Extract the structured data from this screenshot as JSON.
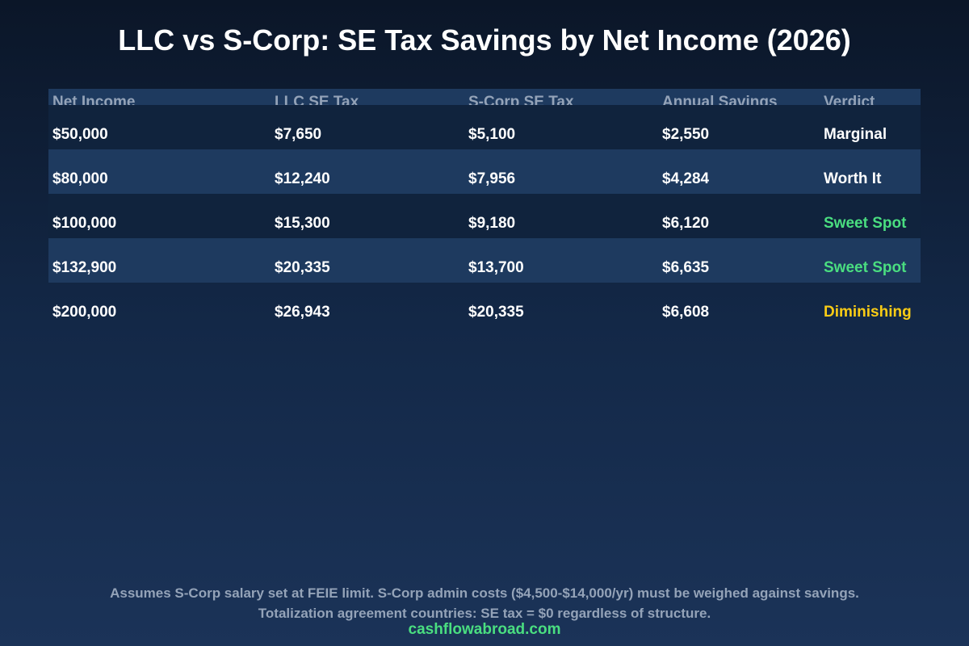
{
  "header": {
    "title": "LLC vs S-Corp: SE Tax Savings by Net Income (2026)"
  },
  "table": {
    "columns": [
      "Net Income",
      "LLC SE Tax",
      "S-Corp SE Tax",
      "Annual Savings",
      "Verdict"
    ],
    "rows": [
      [
        "$50,000",
        "$7,650",
        "$5,100",
        "$2,550",
        "Marginal"
      ],
      [
        "$80,000",
        "$12,240",
        "$7,956",
        "$4,284",
        "Worth It"
      ],
      [
        "$100,000",
        "$15,300",
        "$9,180",
        "$6,120",
        "Sweet Spot"
      ],
      [
        "$132,900",
        "$20,335",
        "$13,700",
        "$6,635",
        "Sweet Spot"
      ],
      [
        "$200,000",
        "$26,943",
        "$20,335",
        "$6,608",
        "Diminishing"
      ]
    ]
  },
  "footer": {
    "notes": [
      "Assumes S-Corp salary set at FEIE limit. S-Corp admin costs ($4,500-$14,000/yr) must be weighed against savings.",
      "Totalization agreement countries: SE tax = $0 regardless of structure."
    ],
    "source": "cashflowabroad.com"
  }
}
